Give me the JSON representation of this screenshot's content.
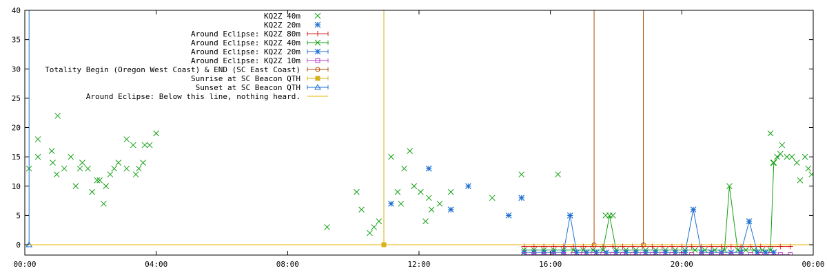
{
  "chart_data": {
    "type": "scatter",
    "x_unit": "hours",
    "xlim": [
      0,
      24
    ],
    "ylim": [
      0,
      40
    ],
    "x_ticks": [
      {
        "value": 0,
        "label": "00:00"
      },
      {
        "value": 4,
        "label": "04:00"
      },
      {
        "value": 8,
        "label": "08:00"
      },
      {
        "value": 12,
        "label": "12:00"
      },
      {
        "value": 16,
        "label": "16:00"
      },
      {
        "value": 20,
        "label": "20:00"
      },
      {
        "value": 24,
        "label": "00:00"
      }
    ],
    "y_ticks": [
      0,
      5,
      10,
      15,
      20,
      25,
      30,
      35,
      40
    ],
    "grid": false,
    "legend_position": "top-center",
    "series": [
      {
        "name": "KQ2Z 40m",
        "style": "points",
        "marker": "x",
        "color": "#13a013",
        "points": [
          [
            0.13,
            13
          ],
          [
            0.4,
            18
          ],
          [
            0.4,
            15
          ],
          [
            0.82,
            16
          ],
          [
            0.85,
            14
          ],
          [
            1.0,
            22
          ],
          [
            0.97,
            12
          ],
          [
            1.2,
            13
          ],
          [
            1.4,
            15
          ],
          [
            1.55,
            10
          ],
          [
            1.68,
            13
          ],
          [
            1.75,
            14
          ],
          [
            1.92,
            13
          ],
          [
            2.05,
            9
          ],
          [
            2.2,
            11
          ],
          [
            2.28,
            11
          ],
          [
            2.4,
            7
          ],
          [
            2.47,
            10
          ],
          [
            2.6,
            12
          ],
          [
            2.72,
            13
          ],
          [
            2.85,
            14
          ],
          [
            3.1,
            18
          ],
          [
            3.1,
            13
          ],
          [
            3.3,
            17
          ],
          [
            3.38,
            12
          ],
          [
            3.47,
            13
          ],
          [
            3.6,
            14
          ],
          [
            3.65,
            17
          ],
          [
            3.8,
            17
          ],
          [
            4.0,
            19
          ],
          [
            9.2,
            3
          ],
          [
            10.1,
            9
          ],
          [
            10.25,
            6
          ],
          [
            10.5,
            2
          ],
          [
            10.63,
            3
          ],
          [
            10.78,
            4
          ],
          [
            11.15,
            15
          ],
          [
            11.35,
            9
          ],
          [
            11.45,
            7
          ],
          [
            11.55,
            13
          ],
          [
            11.72,
            16
          ],
          [
            11.85,
            10
          ],
          [
            12.05,
            9
          ],
          [
            12.2,
            4
          ],
          [
            12.3,
            8
          ],
          [
            12.38,
            6
          ],
          [
            12.63,
            7
          ],
          [
            12.97,
            9
          ],
          [
            14.23,
            8
          ],
          [
            15.12,
            12
          ],
          [
            16.23,
            12
          ],
          [
            17.68,
            5
          ],
          [
            17.9,
            5
          ],
          [
            22.7,
            19
          ],
          [
            22.78,
            14
          ],
          [
            22.9,
            15
          ],
          [
            23.05,
            17
          ],
          [
            23.2,
            15
          ],
          [
            23.35,
            15
          ],
          [
            23.5,
            14
          ],
          [
            23.6,
            11
          ],
          [
            23.75,
            15
          ],
          [
            23.85,
            13
          ],
          [
            23.95,
            12
          ]
        ]
      },
      {
        "name": "KQ2Z 20m",
        "style": "points",
        "marker": "asterisk",
        "color": "#1d6fd0",
        "points": [
          [
            11.15,
            7
          ],
          [
            12.3,
            13
          ],
          [
            12.97,
            6
          ],
          [
            13.5,
            10
          ],
          [
            14.73,
            5
          ],
          [
            15.12,
            8
          ]
        ]
      },
      {
        "name": "Around Eclipse: KQ2Z 80m",
        "style": "linespoints",
        "marker": "plus",
        "color": "#d62020",
        "points": [
          [
            15.2,
            -0.3
          ],
          [
            15.5,
            -0.3
          ],
          [
            15.8,
            -0.3
          ],
          [
            16.1,
            -0.3
          ],
          [
            16.4,
            -0.3
          ],
          [
            16.7,
            -0.3
          ],
          [
            17.0,
            -0.3
          ],
          [
            17.3,
            -0.3
          ],
          [
            17.6,
            -0.3
          ],
          [
            17.9,
            -0.3
          ],
          [
            18.2,
            -0.3
          ],
          [
            18.5,
            -0.3
          ],
          [
            18.8,
            -0.3
          ],
          [
            19.1,
            -0.3
          ],
          [
            19.4,
            -0.3
          ],
          [
            19.7,
            -0.3
          ],
          [
            20.0,
            -0.3
          ],
          [
            20.3,
            -0.3
          ],
          [
            20.6,
            -0.3
          ],
          [
            20.9,
            -0.3
          ],
          [
            21.2,
            -0.3
          ],
          [
            21.5,
            -0.3
          ],
          [
            21.8,
            -0.3
          ],
          [
            22.1,
            -0.3
          ],
          [
            22.4,
            -0.3
          ],
          [
            22.7,
            -0.3
          ],
          [
            23.0,
            -0.3
          ],
          [
            23.3,
            -0.3
          ]
        ]
      },
      {
        "name": "Around Eclipse: KQ2Z 40m",
        "style": "linespoints",
        "marker": "x",
        "color": "#13a013",
        "points": [
          [
            15.2,
            -0.9
          ],
          [
            15.5,
            -0.9
          ],
          [
            15.8,
            -0.9
          ],
          [
            16.1,
            -0.9
          ],
          [
            16.4,
            -0.9
          ],
          [
            16.7,
            -0.9
          ],
          [
            17.0,
            -0.9
          ],
          [
            17.3,
            -0.9
          ],
          [
            17.6,
            -0.9
          ],
          [
            17.8,
            5
          ],
          [
            18.0,
            -0.9
          ],
          [
            18.3,
            -0.9
          ],
          [
            18.6,
            -0.9
          ],
          [
            18.9,
            -0.9
          ],
          [
            19.2,
            -0.9
          ],
          [
            19.5,
            -0.9
          ],
          [
            19.8,
            -0.9
          ],
          [
            20.1,
            -0.9
          ],
          [
            20.4,
            -0.9
          ],
          [
            20.7,
            -0.9
          ],
          [
            21.0,
            -0.9
          ],
          [
            21.3,
            -0.9
          ],
          [
            21.45,
            10
          ],
          [
            21.7,
            -0.9
          ],
          [
            21.95,
            -0.9
          ],
          [
            22.2,
            -0.9
          ],
          [
            22.45,
            -0.9
          ],
          [
            22.7,
            -0.9
          ],
          [
            22.8,
            14
          ],
          [
            23.0,
            15.5
          ]
        ]
      },
      {
        "name": "Around Eclipse: KQ2Z 20m",
        "style": "linespoints",
        "marker": "asterisk",
        "color": "#1d6fd0",
        "points": [
          [
            15.2,
            -1.3
          ],
          [
            15.5,
            -1.3
          ],
          [
            15.8,
            -1.3
          ],
          [
            16.1,
            -1.3
          ],
          [
            16.4,
            -1.3
          ],
          [
            16.6,
            5
          ],
          [
            16.8,
            -1.3
          ],
          [
            17.1,
            -1.3
          ],
          [
            17.4,
            -1.3
          ],
          [
            17.7,
            -1.3
          ],
          [
            18.0,
            -1.3
          ],
          [
            18.3,
            -1.3
          ],
          [
            18.6,
            -1.3
          ],
          [
            18.9,
            -1.3
          ],
          [
            19.2,
            -1.3
          ],
          [
            19.5,
            -1.3
          ],
          [
            19.8,
            -1.3
          ],
          [
            20.1,
            -1.3
          ],
          [
            20.35,
            6
          ],
          [
            20.6,
            -1.3
          ],
          [
            20.9,
            -1.3
          ],
          [
            21.2,
            -1.3
          ],
          [
            21.5,
            -1.3
          ],
          [
            21.8,
            -1.3
          ],
          [
            22.05,
            4
          ],
          [
            22.3,
            -1.3
          ],
          [
            22.55,
            -1.3
          ],
          [
            22.8,
            -1.3
          ]
        ]
      },
      {
        "name": "Around Eclipse: KQ2Z 10m",
        "style": "linespoints",
        "marker": "square",
        "color": "#b83cc9",
        "points": [
          [
            15.2,
            -1.7
          ],
          [
            15.5,
            -1.7
          ],
          [
            15.8,
            -1.7
          ],
          [
            16.1,
            -1.7
          ],
          [
            16.4,
            -1.7
          ],
          [
            16.7,
            -1.7
          ],
          [
            17.0,
            -1.7
          ],
          [
            17.3,
            -1.7
          ],
          [
            17.6,
            -1.7
          ],
          [
            17.9,
            -1.7
          ],
          [
            18.2,
            -1.7
          ],
          [
            18.5,
            -1.7
          ],
          [
            18.8,
            -1.7
          ],
          [
            19.1,
            -1.7
          ],
          [
            19.4,
            -1.7
          ],
          [
            19.7,
            -1.7
          ],
          [
            20.0,
            -1.7
          ],
          [
            20.3,
            -1.7
          ],
          [
            20.6,
            -1.7
          ],
          [
            20.9,
            -1.7
          ],
          [
            21.2,
            -1.7
          ],
          [
            21.5,
            -1.7
          ],
          [
            21.8,
            -1.7
          ],
          [
            22.1,
            -1.7
          ],
          [
            22.4,
            -1.7
          ],
          [
            22.7,
            -1.7
          ],
          [
            23.0,
            -1.7
          ],
          [
            23.3,
            -1.7
          ]
        ]
      },
      {
        "name": "Totality Begin (Oregon West Coast) & END (SC East Coast)",
        "style": "vline",
        "marker": "circle",
        "color": "#b34a00",
        "points": [
          [
            17.33,
            0
          ],
          [
            18.83,
            0
          ]
        ]
      },
      {
        "name": "Sunrise at SC Beacon QTH",
        "style": "vline",
        "marker": "filled-square",
        "color": "#d6b21a",
        "points": [
          [
            10.93,
            0
          ]
        ]
      },
      {
        "name": "Sunset at SC Beacon QTH",
        "style": "vline",
        "marker": "triangle",
        "color": "#1d6fd0",
        "points": [
          [
            0.13,
            0
          ]
        ]
      },
      {
        "name": "Around Eclipse: Below this line, nothing heard.",
        "style": "hline",
        "marker": "none",
        "color": "#e8b400",
        "value": 0
      }
    ]
  }
}
